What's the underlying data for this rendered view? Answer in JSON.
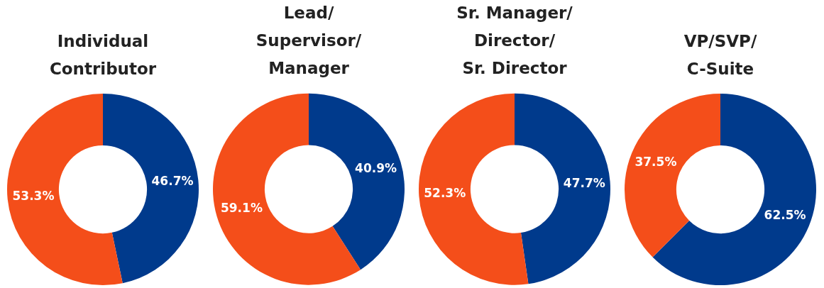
{
  "chart_data": [
    {
      "type": "donut",
      "title": "Individual\nContributor",
      "categories": [
        null,
        null
      ],
      "values": [
        46.7,
        53.3
      ],
      "colors": [
        "#003a8c",
        "#f44e1a"
      ],
      "value_labels": [
        "46.7%",
        "53.3%"
      ]
    },
    {
      "type": "donut",
      "title": "Lead/\nSupervisor/\nManager",
      "categories": [
        null,
        null
      ],
      "values": [
        40.9,
        59.1
      ],
      "colors": [
        "#003a8c",
        "#f44e1a"
      ],
      "value_labels": [
        "40.9%",
        "59.1%"
      ]
    },
    {
      "type": "donut",
      "title": "Sr. Manager/\nDirector/\nSr. Director",
      "categories": [
        null,
        null
      ],
      "values": [
        47.7,
        52.3
      ],
      "colors": [
        "#003a8c",
        "#f44e1a"
      ],
      "value_labels": [
        "47.7%",
        "52.3%"
      ]
    },
    {
      "type": "donut",
      "title": "VP/SVP/\nC-Suite",
      "categories": [
        null,
        null
      ],
      "values": [
        62.5,
        37.5
      ],
      "colors": [
        "#003a8c",
        "#f44e1a"
      ],
      "value_labels": [
        "62.5%",
        "37.5%"
      ]
    }
  ]
}
